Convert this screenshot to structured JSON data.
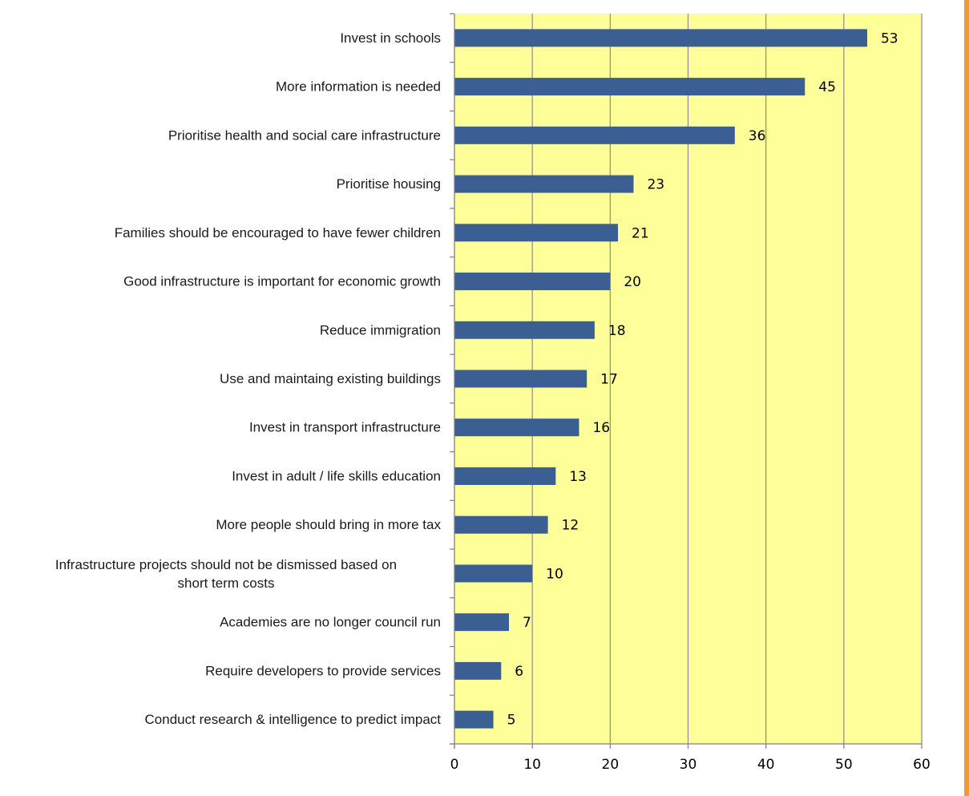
{
  "chart_data": {
    "type": "bar",
    "orientation": "horizontal",
    "categories": [
      "Invest in schools",
      "More information is needed",
      "Prioritise health and social care infrastructure",
      "Prioritise housing",
      "Families should be encouraged to have fewer children",
      "Good infrastructure is important for economic growth",
      "Reduce immigration",
      "Use and maintaing existing buildings",
      "Invest in transport infrastructure",
      "Invest in adult / life skills education",
      "More people should bring in more tax",
      "Infrastructure projects should not be dismissed based on short term costs",
      "Academies are no longer council run",
      "Require developers to provide services",
      "Conduct research & intelligence to predict impact"
    ],
    "category_lines": [
      [
        "Invest in schools"
      ],
      [
        "More information is needed"
      ],
      [
        "Prioritise health and social care infrastructure"
      ],
      [
        "Prioritise housing"
      ],
      [
        "Families should be encouraged to have fewer children"
      ],
      [
        "Good infrastructure is important for economic growth"
      ],
      [
        "Reduce immigration"
      ],
      [
        "Use and maintaing existing buildings"
      ],
      [
        "Invest in transport infrastructure"
      ],
      [
        "Invest in adult / life skills education"
      ],
      [
        "More people should bring in more tax"
      ],
      [
        "Infrastructure projects should not be dismissed based on",
        "short term costs"
      ],
      [
        "Academies are no longer council run"
      ],
      [
        "Require developers to provide services"
      ],
      [
        "Conduct research & intelligence to predict impact"
      ]
    ],
    "values": [
      53,
      45,
      36,
      23,
      21,
      20,
      18,
      17,
      16,
      13,
      12,
      10,
      7,
      6,
      5
    ],
    "data_labels": [
      "53",
      "45",
      "36",
      "23",
      "21",
      "20",
      "18",
      "17",
      "16",
      "13",
      "12",
      "10",
      "7",
      "6",
      "5"
    ],
    "xlim": [
      0,
      60
    ],
    "x_ticks": [
      0,
      10,
      20,
      30,
      40,
      50,
      60
    ],
    "x_tick_labels": [
      "0",
      "10",
      "20",
      "30",
      "40",
      "50",
      "60"
    ],
    "title": "",
    "xlabel": "",
    "ylabel": "",
    "grid": "vertical",
    "legend": "none",
    "colors": {
      "bar": "#3b5f93",
      "plot_background": "#ffff99",
      "gridline": "#8c8c8c",
      "axis": "#7f7f7f",
      "frame_border": "#ee9a3c",
      "background": "#ffffff"
    }
  }
}
